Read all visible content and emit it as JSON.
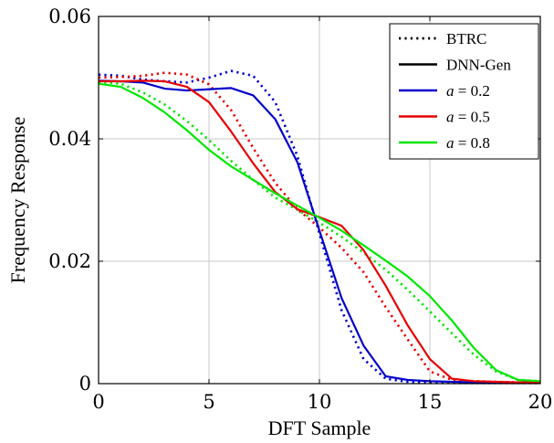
{
  "chart_data": {
    "type": "line",
    "xlabel": "DFT Sample",
    "ylabel": "Frequency Response",
    "xlim": [
      0,
      20
    ],
    "ylim": [
      0,
      0.06
    ],
    "xticks": [
      0,
      5,
      10,
      15,
      20
    ],
    "xtick_labels": [
      "0",
      "5",
      "10",
      "15",
      "20"
    ],
    "yticks": [
      0,
      0.02,
      0.04,
      0.06
    ],
    "ytick_labels": [
      "0",
      "0.02",
      "0.04",
      "0.06"
    ],
    "grid": true,
    "legend_position": "top-right",
    "legend": [
      {
        "label": "BTRC",
        "style": "dotted",
        "color": "#000000"
      },
      {
        "label": "DNN-Gen",
        "style": "solid",
        "color": "#000000"
      },
      {
        "label_var": "a",
        "label_rest": " = 0.2",
        "style": "solid",
        "color": "#0000cc"
      },
      {
        "label_var": "a",
        "label_rest": " = 0.5",
        "style": "solid",
        "color": "#e60000"
      },
      {
        "label_var": "a",
        "label_rest": " = 0.8",
        "style": "solid",
        "color": "#00e600"
      }
    ],
    "x": [
      0,
      1,
      2,
      3,
      4,
      5,
      6,
      7,
      8,
      9,
      10,
      11,
      12,
      13,
      14,
      15,
      16,
      17,
      18,
      19,
      20
    ],
    "series": [
      {
        "method": "DNN-Gen",
        "a": "0.2",
        "color": "#0000cc",
        "style": "solid",
        "values": [
          0.0495,
          0.0494,
          0.0492,
          0.0482,
          0.0479,
          0.0481,
          0.0483,
          0.0471,
          0.0432,
          0.0362,
          0.025,
          0.014,
          0.0062,
          0.0012,
          0.0006,
          0.0004,
          0.0003,
          0.0002,
          0.0002,
          0.0001,
          0.0001
        ]
      },
      {
        "method": "BTRC",
        "a": "0.2",
        "color": "#0000cc",
        "style": "dotted",
        "values": [
          0.0505,
          0.0503,
          0.0497,
          0.0494,
          0.0492,
          0.05,
          0.0511,
          0.0503,
          0.046,
          0.0372,
          0.0245,
          0.012,
          0.004,
          0.0008,
          0.0003,
          0.0002,
          0.0001,
          0.0001,
          0.0001,
          0.0001,
          0.0001
        ]
      },
      {
        "method": "DNN-Gen",
        "a": "0.5",
        "color": "#e60000",
        "style": "solid",
        "values": [
          0.0494,
          0.0494,
          0.0495,
          0.0494,
          0.0485,
          0.046,
          0.0412,
          0.036,
          0.0313,
          0.0285,
          0.0272,
          0.0258,
          0.0218,
          0.016,
          0.0095,
          0.004,
          0.0008,
          0.0004,
          0.0003,
          0.0002,
          0.0002
        ]
      },
      {
        "method": "BTRC",
        "a": "0.5",
        "color": "#e60000",
        "style": "dotted",
        "values": [
          0.05,
          0.0501,
          0.0503,
          0.0508,
          0.0505,
          0.0489,
          0.0447,
          0.0385,
          0.0328,
          0.0285,
          0.0255,
          0.0222,
          0.0182,
          0.0125,
          0.0072,
          0.002,
          0.0006,
          0.0004,
          0.0003,
          0.0002,
          0.0002
        ]
      },
      {
        "method": "DNN-Gen",
        "a": "0.8",
        "color": "#00e600",
        "style": "solid",
        "values": [
          0.049,
          0.0485,
          0.0467,
          0.0443,
          0.0414,
          0.0382,
          0.0355,
          0.0333,
          0.0311,
          0.0291,
          0.0271,
          0.025,
          0.0226,
          0.0201,
          0.0175,
          0.0143,
          0.0103,
          0.0058,
          0.0022,
          0.0006,
          0.0004
        ]
      },
      {
        "method": "BTRC",
        "a": "0.8",
        "color": "#00e600",
        "style": "dotted",
        "values": [
          0.0493,
          0.049,
          0.0476,
          0.0456,
          0.0429,
          0.0398,
          0.0364,
          0.0333,
          0.0304,
          0.0284,
          0.0263,
          0.024,
          0.0214,
          0.0186,
          0.0153,
          0.0118,
          0.0082,
          0.0047,
          0.002,
          0.0006,
          0.0004
        ]
      }
    ]
  }
}
